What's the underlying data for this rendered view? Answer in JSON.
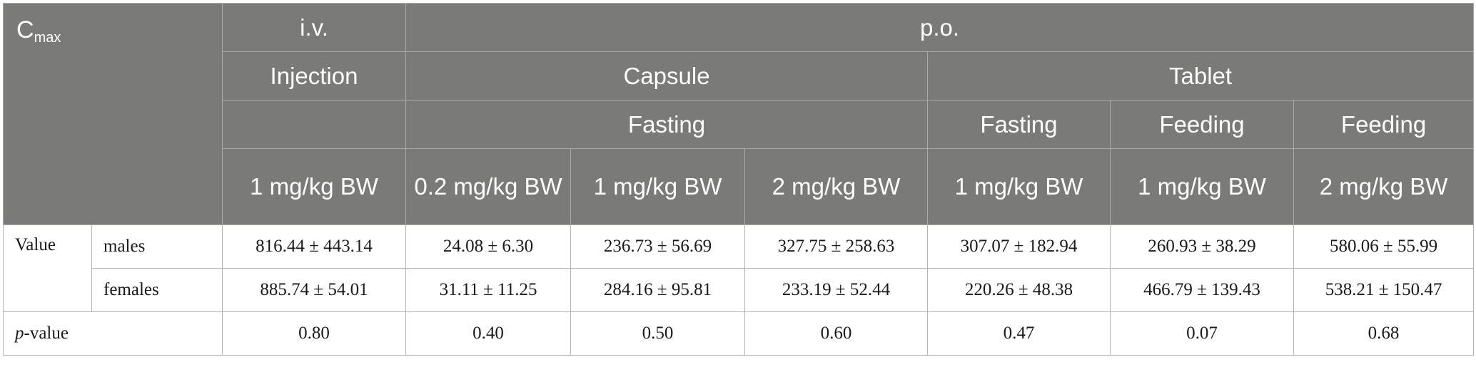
{
  "header": {
    "corner_main": "C",
    "corner_sub": "max",
    "row1": {
      "iv": "i.v.",
      "po": "p.o."
    },
    "row2": {
      "injection": "Injection",
      "capsule": "Capsule",
      "tablet": "Tablet"
    },
    "row3": {
      "capsule_fasting": "Fasting",
      "tablet_fasting": "Fasting",
      "tablet_feeding_1": "Feeding",
      "tablet_feeding_2": "Feeding"
    },
    "doses": [
      "1 mg/kg BW",
      "0.2 mg/kg BW",
      "1 mg/kg BW",
      "2 mg/kg BW",
      "1 mg/kg BW",
      "1 mg/kg BW",
      "2 mg/kg BW"
    ]
  },
  "rows": {
    "value_label": "Value",
    "males_label": "males",
    "females_label": "females",
    "pvalue_italic": "p",
    "pvalue_rest": "-value",
    "males": [
      "816.44 ± 443.14",
      "24.08 ± 6.30",
      "236.73 ± 56.69",
      "327.75 ± 258.63",
      "307.07 ± 182.94",
      "260.93 ± 38.29",
      "580.06 ± 55.99"
    ],
    "females": [
      "885.74 ± 54.01",
      "31.11 ± 11.25",
      "284.16 ± 95.81",
      "233.19 ± 52.44",
      "220.26 ± 48.38",
      "466.79 ± 139.43",
      "538.21 ± 150.47"
    ],
    "pvalues": [
      "0.80",
      "0.40",
      "0.50",
      "0.60",
      "0.47",
      "0.07",
      "0.68"
    ]
  }
}
